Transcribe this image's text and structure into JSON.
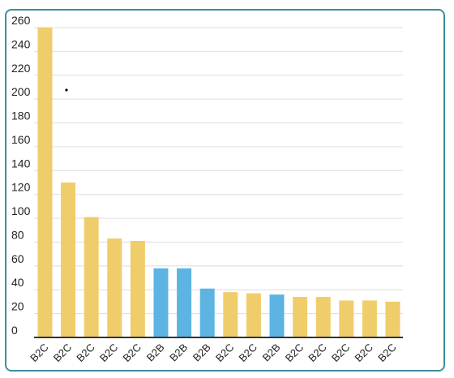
{
  "chart_data": {
    "type": "bar",
    "categories": [
      "B2C",
      "B2C",
      "B2C",
      "B2C",
      "B2C",
      "B2B",
      "B2B",
      "B2B",
      "B2C",
      "B2C",
      "B2B",
      "B2C",
      "B2C",
      "B2C",
      "B2C",
      "B2C"
    ],
    "values": [
      260,
      130,
      101,
      83,
      81,
      58,
      58,
      41,
      38,
      37,
      36,
      34,
      34,
      31,
      31,
      30
    ],
    "y_ticks": [
      "0",
      "20",
      "40",
      "60",
      "80",
      "100",
      "120",
      "140",
      "160",
      "180",
      "200",
      "220",
      "240",
      "260"
    ],
    "ylim": [
      0,
      260
    ],
    "grid": true,
    "colors": {
      "B2C": "#f0cd6b",
      "B2B": "#5db4e3"
    },
    "title": "",
    "xlabel": "",
    "ylabel": ""
  },
  "style": {
    "frame_border": "#3a8fa0",
    "grid_color": "#dddddd",
    "axis_color": "#333333"
  }
}
